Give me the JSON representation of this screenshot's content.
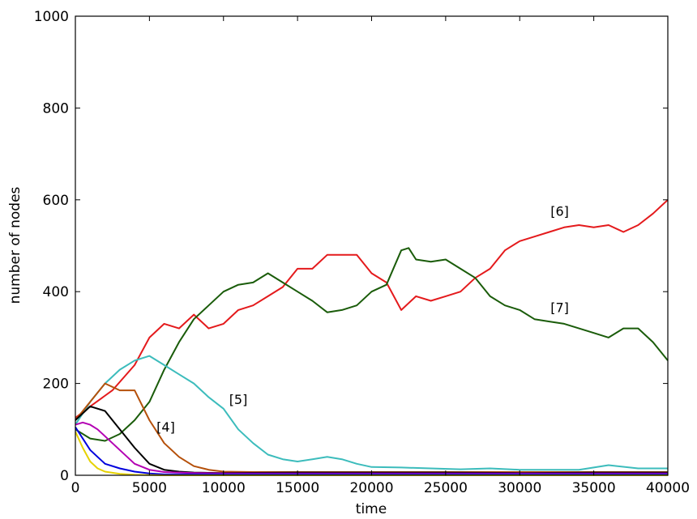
{
  "chart_data": {
    "type": "line",
    "title": "",
    "xlabel": "time",
    "ylabel": "number of nodes",
    "xlim": [
      0,
      40000
    ],
    "ylim": [
      0,
      1000
    ],
    "xticks": [
      "0",
      "5000",
      "10000",
      "15000",
      "20000",
      "25000",
      "30000",
      "35000",
      "40000"
    ],
    "yticks": [
      "0",
      "200",
      "400",
      "600",
      "800",
      "1000"
    ],
    "grid": false,
    "legend": "none",
    "annotations": [
      {
        "text": "[4]",
        "x": 6100,
        "y": 95
      },
      {
        "text": "[5]",
        "x": 11000,
        "y": 155
      },
      {
        "text": "[6]",
        "x": 32700,
        "y": 565
      },
      {
        "text": "[7]",
        "x": 32700,
        "y": 355
      }
    ],
    "series": [
      {
        "color": "#e41a1c",
        "points": [
          [
            0,
            125
          ],
          [
            1000,
            150
          ],
          [
            2500,
            185
          ],
          [
            4000,
            240
          ],
          [
            5000,
            300
          ],
          [
            6000,
            330
          ],
          [
            7000,
            320
          ],
          [
            8000,
            350
          ],
          [
            9000,
            320
          ],
          [
            10000,
            330
          ],
          [
            11000,
            360
          ],
          [
            12000,
            370
          ],
          [
            13000,
            390
          ],
          [
            14000,
            410
          ],
          [
            15000,
            450
          ],
          [
            16000,
            450
          ],
          [
            17000,
            480
          ],
          [
            18000,
            480
          ],
          [
            19000,
            480
          ],
          [
            20000,
            440
          ],
          [
            21000,
            420
          ],
          [
            22000,
            360
          ],
          [
            23000,
            390
          ],
          [
            24000,
            380
          ],
          [
            25000,
            390
          ],
          [
            26000,
            400
          ],
          [
            27000,
            430
          ],
          [
            28000,
            450
          ],
          [
            29000,
            490
          ],
          [
            30000,
            510
          ],
          [
            31000,
            520
          ],
          [
            32000,
            530
          ],
          [
            33000,
            540
          ],
          [
            34000,
            545
          ],
          [
            35000,
            540
          ],
          [
            36000,
            545
          ],
          [
            37000,
            530
          ],
          [
            38000,
            545
          ],
          [
            39000,
            570
          ],
          [
            40000,
            600
          ]
        ]
      },
      {
        "color": "#1a5c0a",
        "points": [
          [
            0,
            100
          ],
          [
            1000,
            80
          ],
          [
            2000,
            75
          ],
          [
            3000,
            90
          ],
          [
            4000,
            120
          ],
          [
            5000,
            160
          ],
          [
            6000,
            230
          ],
          [
            7000,
            290
          ],
          [
            8000,
            340
          ],
          [
            9000,
            370
          ],
          [
            10000,
            400
          ],
          [
            11000,
            415
          ],
          [
            12000,
            420
          ],
          [
            13000,
            440
          ],
          [
            14000,
            420
          ],
          [
            15000,
            400
          ],
          [
            16000,
            380
          ],
          [
            17000,
            355
          ],
          [
            18000,
            360
          ],
          [
            19000,
            370
          ],
          [
            20000,
            400
          ],
          [
            21000,
            415
          ],
          [
            22000,
            490
          ],
          [
            22500,
            495
          ],
          [
            23000,
            470
          ],
          [
            24000,
            465
          ],
          [
            25000,
            470
          ],
          [
            26000,
            450
          ],
          [
            27000,
            430
          ],
          [
            28000,
            390
          ],
          [
            29000,
            370
          ],
          [
            30000,
            360
          ],
          [
            31000,
            340
          ],
          [
            32000,
            335
          ],
          [
            33000,
            330
          ],
          [
            34000,
            320
          ],
          [
            35000,
            310
          ],
          [
            36000,
            300
          ],
          [
            37000,
            320
          ],
          [
            38000,
            320
          ],
          [
            39000,
            290
          ],
          [
            40000,
            250
          ]
        ]
      },
      {
        "color": "#3cbcbc",
        "points": [
          [
            0,
            110
          ],
          [
            1000,
            160
          ],
          [
            2000,
            200
          ],
          [
            3000,
            230
          ],
          [
            4000,
            250
          ],
          [
            5000,
            260
          ],
          [
            6000,
            240
          ],
          [
            7000,
            220
          ],
          [
            8000,
            200
          ],
          [
            9000,
            170
          ],
          [
            10000,
            145
          ],
          [
            11000,
            100
          ],
          [
            12000,
            70
          ],
          [
            13000,
            45
          ],
          [
            14000,
            35
          ],
          [
            15000,
            30
          ],
          [
            16000,
            35
          ],
          [
            17000,
            40
          ],
          [
            18000,
            35
          ],
          [
            19000,
            25
          ],
          [
            20000,
            18
          ],
          [
            22000,
            17
          ],
          [
            24000,
            15
          ],
          [
            26000,
            13
          ],
          [
            28000,
            15
          ],
          [
            30000,
            12
          ],
          [
            32000,
            12
          ],
          [
            34000,
            12
          ],
          [
            36000,
            22
          ],
          [
            38000,
            15
          ],
          [
            40000,
            15
          ]
        ]
      },
      {
        "color": "#b5500a",
        "points": [
          [
            0,
            120
          ],
          [
            1000,
            160
          ],
          [
            2000,
            200
          ],
          [
            3000,
            185
          ],
          [
            4000,
            185
          ],
          [
            5000,
            120
          ],
          [
            6000,
            70
          ],
          [
            7000,
            40
          ],
          [
            8000,
            20
          ],
          [
            9000,
            12
          ],
          [
            10000,
            8
          ],
          [
            12000,
            7
          ],
          [
            15000,
            7
          ],
          [
            20000,
            7
          ],
          [
            25000,
            7
          ],
          [
            30000,
            7
          ],
          [
            35000,
            7
          ],
          [
            40000,
            7
          ]
        ]
      },
      {
        "color": "#000000",
        "points": [
          [
            0,
            120
          ],
          [
            1000,
            150
          ],
          [
            2000,
            140
          ],
          [
            3000,
            100
          ],
          [
            4000,
            60
          ],
          [
            5000,
            25
          ],
          [
            6000,
            12
          ],
          [
            7000,
            8
          ],
          [
            8000,
            6
          ],
          [
            10000,
            5
          ],
          [
            15000,
            6
          ],
          [
            20000,
            6
          ],
          [
            25000,
            6
          ],
          [
            30000,
            5
          ],
          [
            35000,
            6
          ],
          [
            40000,
            6
          ]
        ]
      },
      {
        "color": "#b300b3",
        "points": [
          [
            0,
            110
          ],
          [
            500,
            115
          ],
          [
            1000,
            110
          ],
          [
            1500,
            100
          ],
          [
            2000,
            85
          ],
          [
            3000,
            55
          ],
          [
            4000,
            25
          ],
          [
            5000,
            12
          ],
          [
            6000,
            7
          ],
          [
            8000,
            5
          ],
          [
            10000,
            4
          ],
          [
            15000,
            4
          ],
          [
            20000,
            4
          ],
          [
            25000,
            4
          ],
          [
            30000,
            4
          ],
          [
            35000,
            4
          ],
          [
            40000,
            4
          ]
        ]
      },
      {
        "color": "#0000dd",
        "points": [
          [
            0,
            105
          ],
          [
            500,
            80
          ],
          [
            1000,
            55
          ],
          [
            1500,
            40
          ],
          [
            2000,
            25
          ],
          [
            3000,
            15
          ],
          [
            4000,
            8
          ],
          [
            5000,
            4
          ],
          [
            6000,
            2
          ],
          [
            8000,
            2
          ],
          [
            12000,
            2
          ],
          [
            20000,
            2
          ],
          [
            30000,
            2
          ],
          [
            40000,
            2
          ]
        ]
      },
      {
        "color": "#e6d200",
        "points": [
          [
            0,
            95
          ],
          [
            500,
            60
          ],
          [
            1000,
            30
          ],
          [
            1500,
            15
          ],
          [
            2000,
            8
          ],
          [
            3000,
            3
          ],
          [
            4000,
            1
          ],
          [
            6000,
            0
          ],
          [
            10000,
            0
          ],
          [
            20000,
            0
          ],
          [
            30000,
            0
          ],
          [
            40000,
            0
          ]
        ]
      }
    ]
  }
}
